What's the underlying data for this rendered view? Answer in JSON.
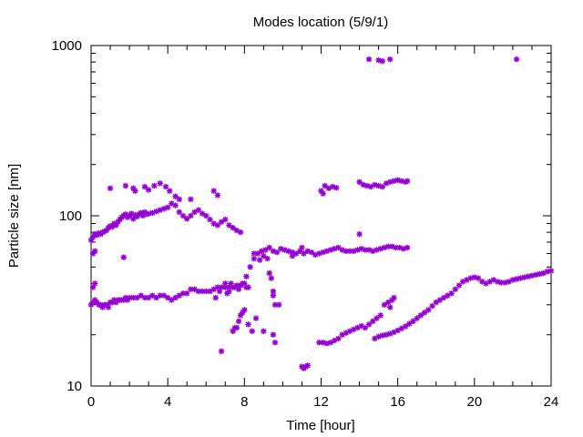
{
  "chart_data": {
    "type": "scatter",
    "title": "Modes location (5/9/1)",
    "xlabel": "Time [hour]",
    "ylabel": "Particle size [nm]",
    "xlim": [
      0,
      24
    ],
    "ylim": [
      10,
      1000
    ],
    "yscale": "log",
    "grid": false,
    "legend": "none",
    "marker": "asterisk",
    "marker_color": "#9400d3",
    "x_ticks": [
      0,
      4,
      8,
      12,
      16,
      20,
      24
    ],
    "x_tick_labels": [
      "0",
      "4",
      "8",
      "12",
      "16",
      "20",
      "24"
    ],
    "y_ticks": [
      10,
      100,
      1000
    ],
    "y_tick_labels": [
      "10",
      "100",
      "1000"
    ],
    "series": [
      {
        "points": [
          [
            0.0,
            30
          ],
          [
            0.1,
            31
          ],
          [
            0.2,
            32
          ],
          [
            0.3,
            31
          ],
          [
            0.4,
            30
          ],
          [
            0.5,
            30
          ],
          [
            0.6,
            29
          ],
          [
            0.7,
            30
          ],
          [
            0.8,
            30
          ],
          [
            0.9,
            29
          ],
          [
            1.0,
            31
          ],
          [
            1.1,
            31
          ],
          [
            1.2,
            32
          ],
          [
            1.3,
            31
          ],
          [
            1.4,
            32
          ],
          [
            1.5,
            32
          ],
          [
            1.6,
            32
          ],
          [
            1.7,
            32
          ],
          [
            1.8,
            33
          ],
          [
            1.9,
            32
          ],
          [
            2.0,
            33
          ],
          [
            2.2,
            33
          ],
          [
            2.4,
            33
          ],
          [
            2.6,
            34
          ],
          [
            2.8,
            33
          ],
          [
            3.0,
            33
          ],
          [
            3.2,
            34
          ],
          [
            3.4,
            33
          ],
          [
            3.6,
            34
          ],
          [
            3.8,
            34
          ],
          [
            4.0,
            33
          ],
          [
            4.2,
            32
          ],
          [
            4.4,
            33
          ],
          [
            4.6,
            34
          ],
          [
            4.8,
            35
          ],
          [
            5.0,
            35
          ],
          [
            5.2,
            37
          ],
          [
            5.4,
            37
          ],
          [
            5.6,
            36
          ],
          [
            5.8,
            36
          ],
          [
            6.0,
            36
          ],
          [
            6.2,
            36
          ],
          [
            6.4,
            37
          ],
          [
            6.6,
            38
          ],
          [
            6.8,
            38
          ],
          [
            7.0,
            38
          ],
          [
            7.2,
            38
          ],
          [
            7.4,
            38
          ],
          [
            7.6,
            39
          ],
          [
            7.8,
            39
          ],
          [
            8.0,
            40
          ],
          [
            8.1,
            38
          ],
          [
            8.2,
            38
          ],
          [
            0.1,
            38
          ],
          [
            0.2,
            40
          ],
          [
            0.1,
            60
          ],
          [
            0.2,
            62
          ],
          [
            0.0,
            72
          ],
          [
            0.1,
            75
          ],
          [
            0.2,
            78
          ],
          [
            0.3,
            77
          ],
          [
            0.4,
            79
          ],
          [
            0.5,
            78
          ],
          [
            0.6,
            80
          ],
          [
            0.7,
            81
          ],
          [
            0.8,
            82
          ],
          [
            0.9,
            85
          ],
          [
            1.0,
            87
          ],
          [
            1.1,
            86
          ],
          [
            1.2,
            90
          ],
          [
            1.3,
            88
          ],
          [
            1.4,
            92
          ],
          [
            1.5,
            95
          ],
          [
            1.6,
            98
          ],
          [
            1.7,
            100
          ],
          [
            1.8,
            102
          ],
          [
            1.9,
            98
          ],
          [
            2.0,
            100
          ],
          [
            2.1,
            103
          ],
          [
            2.2,
            96
          ],
          [
            2.3,
            101
          ],
          [
            2.4,
            99
          ],
          [
            2.5,
            102
          ],
          [
            2.6,
            104
          ],
          [
            2.7,
            100
          ],
          [
            2.8,
            105
          ],
          [
            2.9,
            102
          ],
          [
            3.0,
            103
          ],
          [
            3.2,
            104
          ],
          [
            3.4,
            106
          ],
          [
            3.6,
            108
          ],
          [
            3.8,
            110
          ],
          [
            4.0,
            112
          ],
          [
            4.2,
            118
          ],
          [
            4.4,
            115
          ],
          [
            4.6,
            105
          ],
          [
            4.8,
            100
          ],
          [
            5.0,
            96
          ],
          [
            5.2,
            100
          ],
          [
            5.4,
            105
          ],
          [
            5.6,
            108
          ],
          [
            5.8,
            103
          ],
          [
            6.0,
            100
          ],
          [
            6.2,
            95
          ],
          [
            6.4,
            90
          ],
          [
            6.6,
            88
          ],
          [
            6.8,
            92
          ],
          [
            7.0,
            95
          ],
          [
            7.2,
            88
          ],
          [
            7.4,
            85
          ],
          [
            7.6,
            82
          ],
          [
            7.8,
            80
          ],
          [
            1.0,
            145
          ],
          [
            1.8,
            150
          ],
          [
            2.2,
            145
          ],
          [
            2.3,
            140
          ],
          [
            2.8,
            148
          ],
          [
            3.0,
            142
          ],
          [
            3.3,
            150
          ],
          [
            3.6,
            155
          ],
          [
            3.9,
            148
          ],
          [
            4.1,
            140
          ],
          [
            4.4,
            130
          ],
          [
            4.6,
            125
          ],
          [
            5.2,
            125
          ],
          [
            6.4,
            140
          ],
          [
            6.6,
            132
          ],
          [
            1.7,
            57
          ],
          [
            6.5,
            33
          ],
          [
            6.7,
            36
          ],
          [
            7.0,
            40
          ],
          [
            7.3,
            40
          ],
          [
            6.8,
            16
          ],
          [
            7.1,
            35
          ],
          [
            7.2,
            36
          ],
          [
            7.4,
            21
          ],
          [
            7.5,
            22
          ],
          [
            7.6,
            22
          ],
          [
            7.7,
            24
          ],
          [
            7.8,
            26
          ],
          [
            7.9,
            27
          ],
          [
            8.0,
            28
          ],
          [
            8.2,
            23
          ],
          [
            8.4,
            21
          ],
          [
            8.6,
            25
          ],
          [
            9.0,
            21
          ],
          [
            9.5,
            20
          ],
          [
            9.6,
            18
          ],
          [
            7.5,
            38
          ],
          [
            7.7,
            37
          ],
          [
            7.9,
            40
          ],
          [
            8.1,
            44
          ],
          [
            8.3,
            50
          ],
          [
            8.5,
            56
          ],
          [
            8.7,
            60
          ],
          [
            8.9,
            62
          ],
          [
            9.1,
            63
          ],
          [
            9.3,
            65
          ],
          [
            9.5,
            62
          ],
          [
            9.7,
            61
          ],
          [
            9.9,
            64
          ],
          [
            10.1,
            63
          ],
          [
            10.3,
            62
          ],
          [
            10.5,
            61
          ],
          [
            10.7,
            60
          ],
          [
            10.9,
            62
          ],
          [
            11.1,
            60
          ],
          [
            11.3,
            62
          ],
          [
            11.5,
            61
          ],
          [
            11.7,
            59
          ],
          [
            11.9,
            60
          ],
          [
            12.1,
            61
          ],
          [
            12.3,
            62
          ],
          [
            12.5,
            63
          ],
          [
            12.7,
            64
          ],
          [
            12.9,
            65
          ],
          [
            13.1,
            63
          ],
          [
            13.3,
            62
          ],
          [
            13.5,
            62
          ],
          [
            13.7,
            62
          ],
          [
            13.9,
            63
          ],
          [
            14.1,
            64
          ],
          [
            14.3,
            63
          ],
          [
            14.5,
            63
          ],
          [
            14.7,
            62
          ],
          [
            14.9,
            63
          ],
          [
            15.1,
            64
          ],
          [
            15.3,
            65
          ],
          [
            15.5,
            66
          ],
          [
            15.7,
            66
          ],
          [
            15.9,
            65
          ],
          [
            16.1,
            65
          ],
          [
            16.3,
            64
          ],
          [
            16.5,
            65
          ],
          [
            8.5,
            60
          ],
          [
            8.8,
            55
          ],
          [
            9.0,
            58
          ],
          [
            9.2,
            56
          ],
          [
            9.3,
            46
          ],
          [
            9.4,
            43
          ],
          [
            9.5,
            36
          ],
          [
            9.5,
            34
          ],
          [
            9.6,
            30
          ],
          [
            9.8,
            30
          ],
          [
            10.5,
            58
          ],
          [
            11.0,
            65
          ],
          [
            11.0,
            13
          ],
          [
            11.1,
            12.7
          ],
          [
            11.2,
            13
          ],
          [
            11.3,
            13.2
          ],
          [
            11.9,
            18
          ],
          [
            12.1,
            18
          ],
          [
            12.3,
            17.8
          ],
          [
            12.5,
            18
          ],
          [
            12.7,
            18.5
          ],
          [
            12.9,
            19
          ],
          [
            13.1,
            20
          ],
          [
            13.3,
            20.5
          ],
          [
            13.5,
            21
          ],
          [
            13.7,
            21.5
          ],
          [
            13.9,
            22
          ],
          [
            14.1,
            22.5
          ],
          [
            14.3,
            22
          ],
          [
            14.5,
            23
          ],
          [
            14.7,
            24
          ],
          [
            14.9,
            25
          ],
          [
            15.1,
            26
          ],
          [
            15.3,
            30
          ],
          [
            15.5,
            31
          ],
          [
            15.7,
            32
          ],
          [
            15.8,
            33
          ],
          [
            15.6,
            29
          ],
          [
            14.0,
            78
          ],
          [
            12.0,
            140
          ],
          [
            12.2,
            150
          ],
          [
            12.4,
            145
          ],
          [
            12.6,
            148
          ],
          [
            12.8,
            146
          ],
          [
            12.1,
            135
          ],
          [
            14.0,
            158
          ],
          [
            14.2,
            152
          ],
          [
            14.4,
            150
          ],
          [
            14.6,
            148
          ],
          [
            14.8,
            152
          ],
          [
            15.0,
            150
          ],
          [
            15.2,
            148
          ],
          [
            15.4,
            155
          ],
          [
            15.6,
            158
          ],
          [
            15.8,
            160
          ],
          [
            16.0,
            162
          ],
          [
            16.2,
            160
          ],
          [
            16.4,
            158
          ],
          [
            16.5,
            160
          ],
          [
            14.5,
            830
          ],
          [
            15.0,
            820
          ],
          [
            15.2,
            810
          ],
          [
            15.6,
            830
          ],
          [
            22.2,
            830
          ],
          [
            14.8,
            19
          ],
          [
            15.0,
            19.5
          ],
          [
            15.2,
            19.8
          ],
          [
            15.4,
            20
          ],
          [
            15.6,
            20.3
          ],
          [
            15.8,
            20.7
          ],
          [
            16.0,
            21.2
          ],
          [
            16.2,
            21.8
          ],
          [
            16.4,
            22.4
          ],
          [
            16.6,
            23.2
          ],
          [
            16.8,
            24
          ],
          [
            17.0,
            25
          ],
          [
            17.2,
            26
          ],
          [
            17.4,
            27
          ],
          [
            17.6,
            28
          ],
          [
            17.8,
            29.5
          ],
          [
            18.0,
            31
          ],
          [
            18.2,
            32
          ],
          [
            18.4,
            33
          ],
          [
            18.6,
            34
          ],
          [
            18.8,
            35
          ],
          [
            19.0,
            37
          ],
          [
            19.2,
            39
          ],
          [
            19.4,
            41
          ],
          [
            19.6,
            42
          ],
          [
            19.8,
            43
          ],
          [
            20.0,
            43.5
          ],
          [
            20.2,
            43
          ],
          [
            20.4,
            41
          ],
          [
            20.6,
            40
          ],
          [
            20.8,
            41
          ],
          [
            21.0,
            42
          ],
          [
            21.2,
            41
          ],
          [
            21.4,
            40.5
          ],
          [
            21.6,
            40.5
          ],
          [
            21.8,
            41
          ],
          [
            22.0,
            42
          ],
          [
            22.2,
            42.5
          ],
          [
            22.4,
            43
          ],
          [
            22.6,
            43.5
          ],
          [
            22.8,
            44
          ],
          [
            23.0,
            44.5
          ],
          [
            23.2,
            45
          ],
          [
            23.4,
            45.5
          ],
          [
            23.6,
            46
          ],
          [
            23.8,
            47
          ],
          [
            24.0,
            47.5
          ]
        ]
      }
    ]
  }
}
